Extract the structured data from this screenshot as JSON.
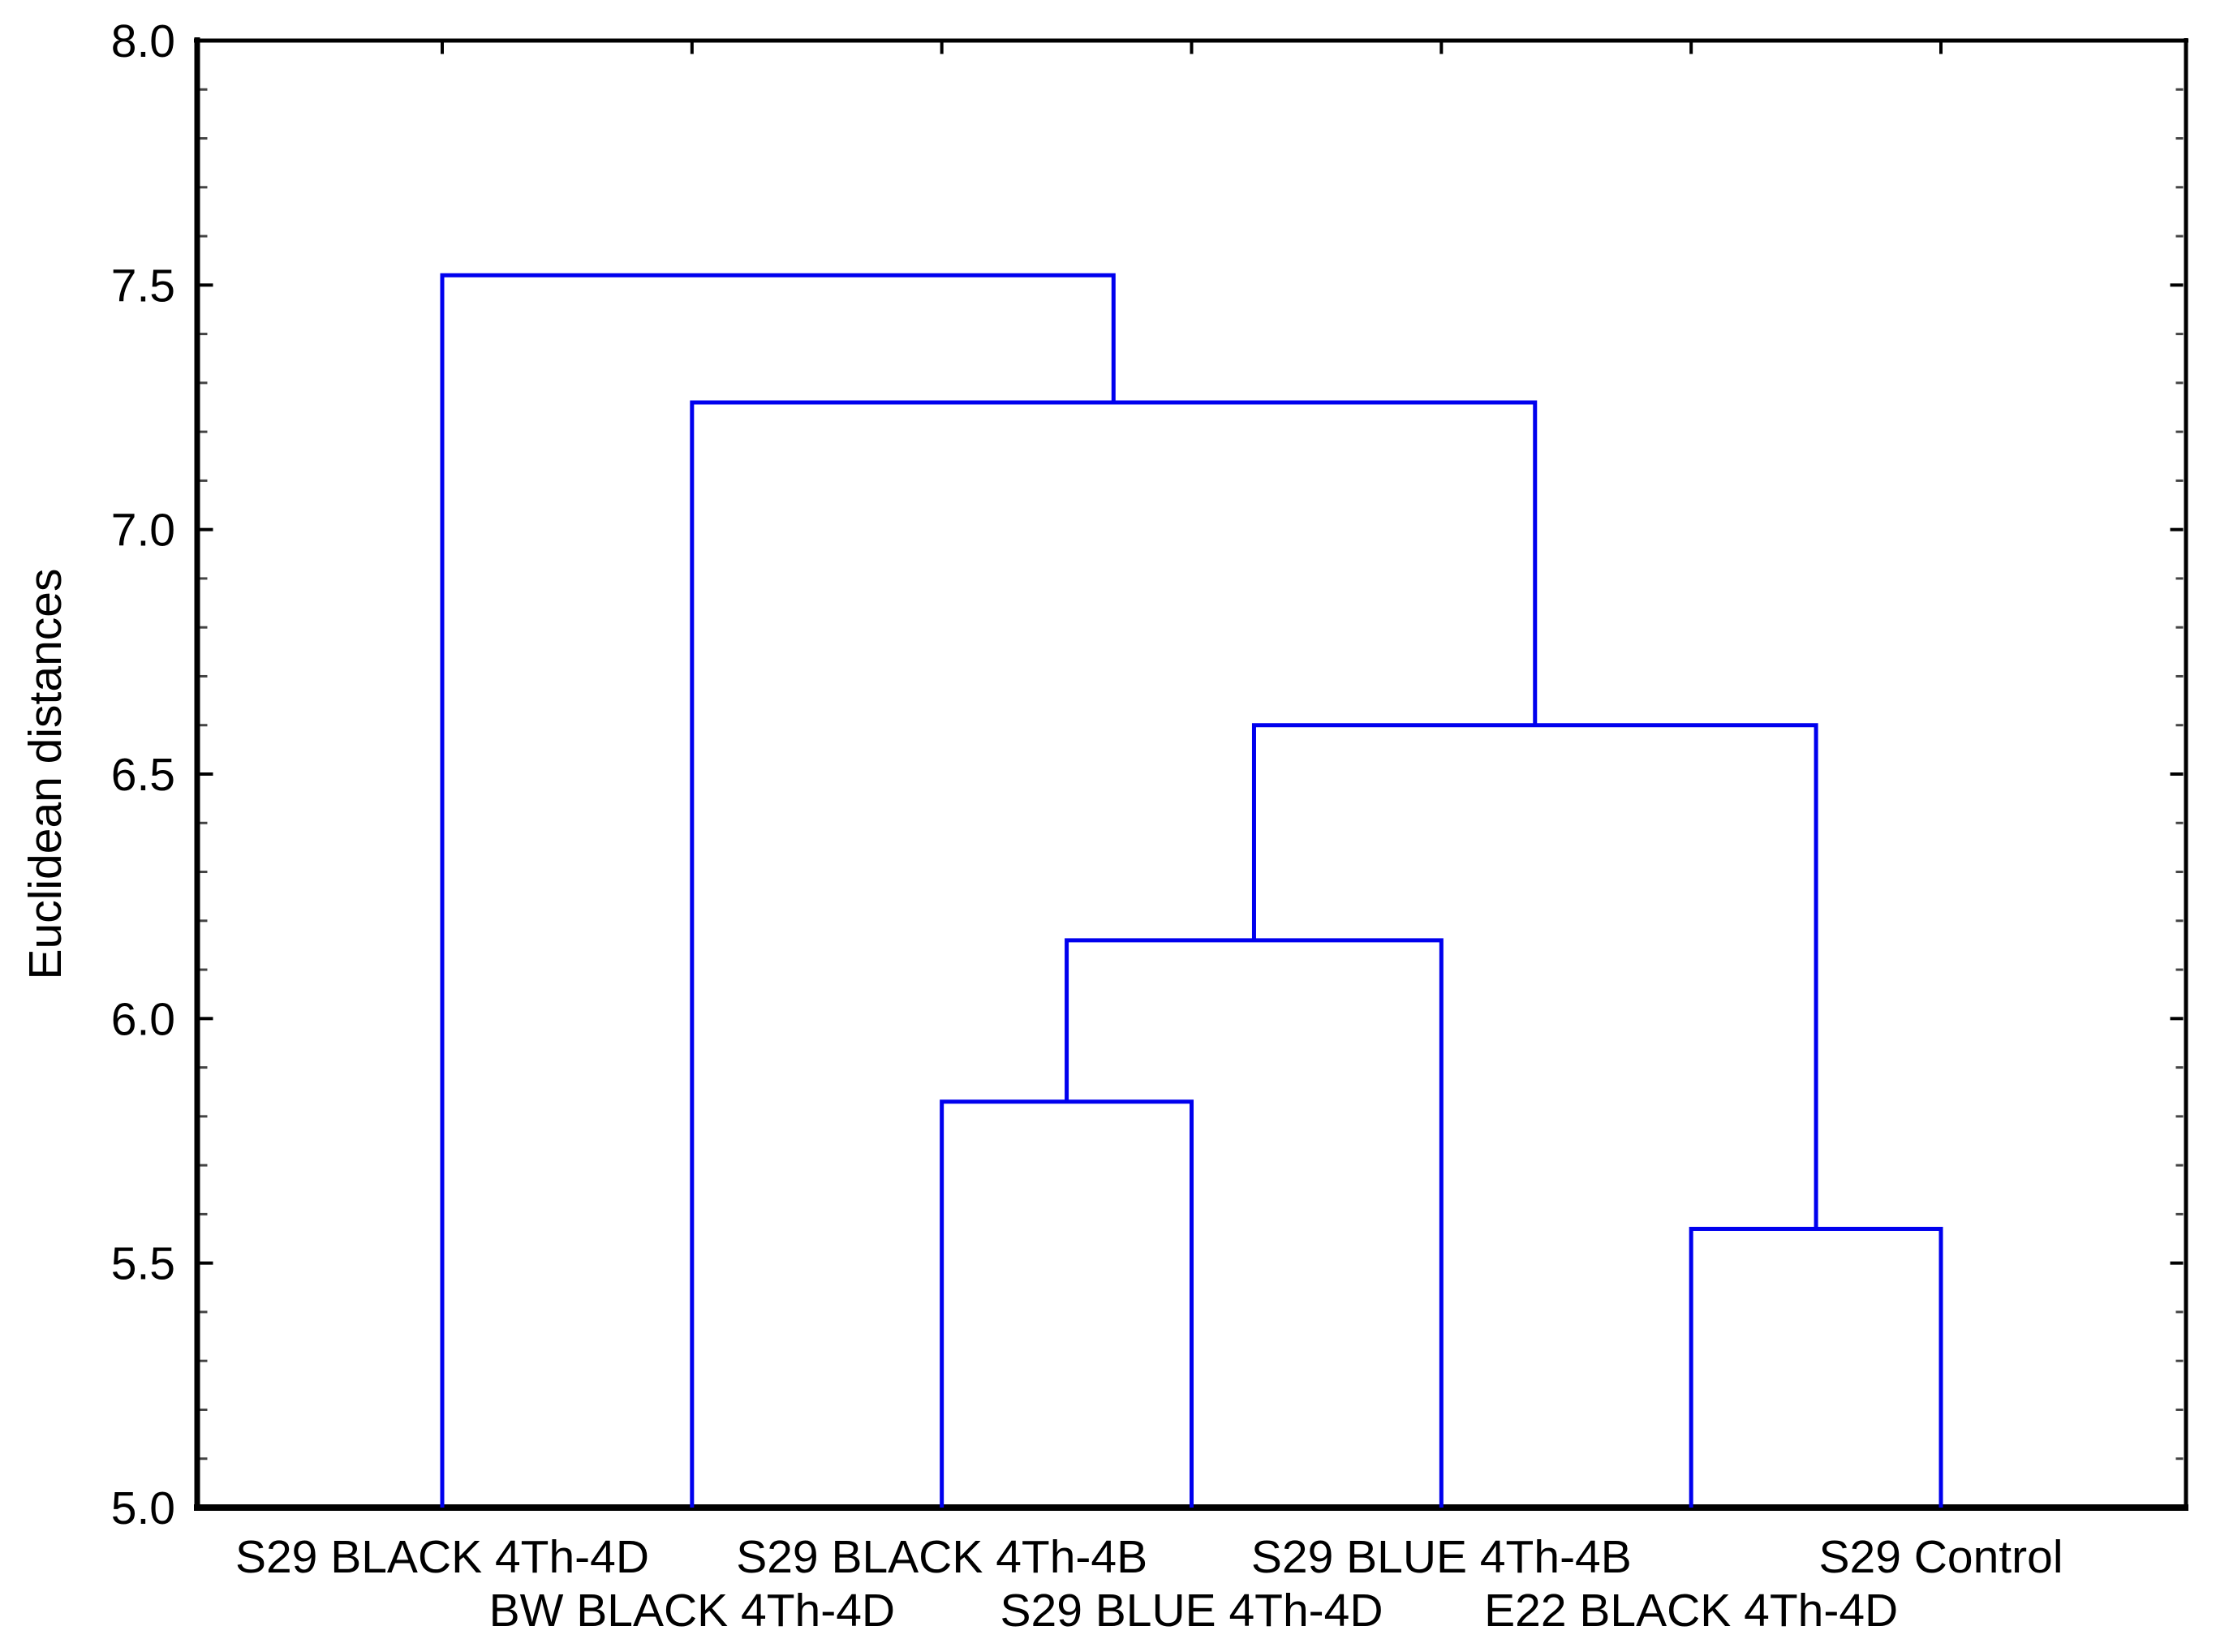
{
  "chart_data": {
    "type": "dendrogram",
    "title": "",
    "ylabel": "Euclidean distances",
    "xlabel": "",
    "ylim": [
      5.0,
      8.0
    ],
    "y_major_tick_step": 0.5,
    "y_minor_tick_step": 0.1,
    "y_major_tick_labels": [
      "5.0",
      "5.5",
      "6.0",
      "6.5",
      "7.0",
      "7.5",
      "8.0"
    ],
    "grid": "off",
    "legend": "none",
    "leaves": [
      "S29 BLACK 4Th-4D",
      "BW BLACK 4Th-4D",
      "S29 BLACK 4Th-4B",
      "S29 BLUE 4Th-4D",
      "S29 BLUE 4Th-4B",
      "E22 BLACK 4Th-4D",
      "S29 Control"
    ],
    "merges": [
      {
        "id": "A",
        "children": [
          2,
          3
        ],
        "height": 5.83
      },
      {
        "id": "B",
        "children": [
          "A",
          4
        ],
        "height": 6.16
      },
      {
        "id": "C",
        "children": [
          5,
          6
        ],
        "height": 5.57
      },
      {
        "id": "D",
        "children": [
          "B",
          "C"
        ],
        "height": 6.6
      },
      {
        "id": "E",
        "children": [
          1,
          "D"
        ],
        "height": 7.26
      },
      {
        "id": "root",
        "children": [
          0,
          "E"
        ],
        "height": 7.52
      }
    ],
    "line_color": "#0000EE",
    "axis_color": "#000000",
    "minor_tick_color": "#444444",
    "label_color": "#000000",
    "background_color": "#ffffff"
  }
}
